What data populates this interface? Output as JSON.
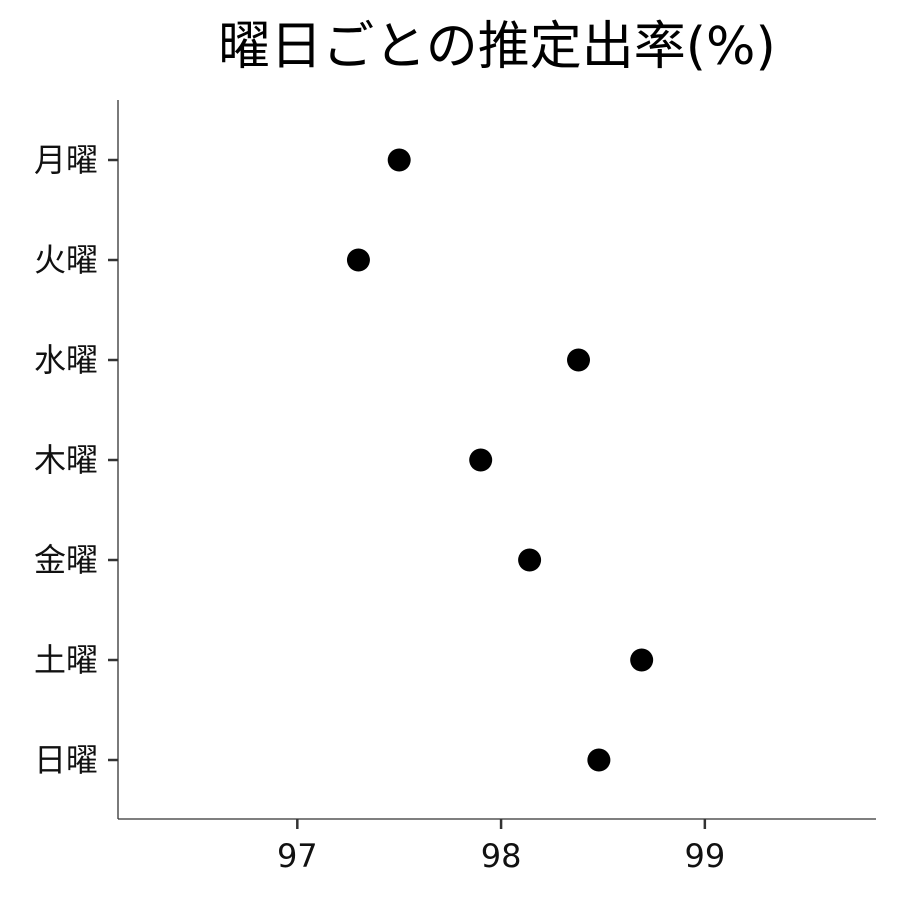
{
  "chart_data": {
    "type": "scatter",
    "title": "曜日ごとの推定出率(%)",
    "xlabel": "",
    "ylabel": "",
    "categories": [
      "月曜",
      "火曜",
      "水曜",
      "木曜",
      "金曜",
      "土曜",
      "日曜"
    ],
    "values": [
      97.5,
      97.3,
      98.38,
      97.9,
      98.14,
      98.69,
      98.48
    ],
    "x_ticks": [
      "97",
      "98",
      "99"
    ],
    "x_tick_values": [
      97,
      98,
      99
    ],
    "xlim": [
      96.12,
      99.84
    ],
    "grid": false,
    "legend": "none",
    "point_color": "#000000",
    "axis_color": "#333333"
  }
}
